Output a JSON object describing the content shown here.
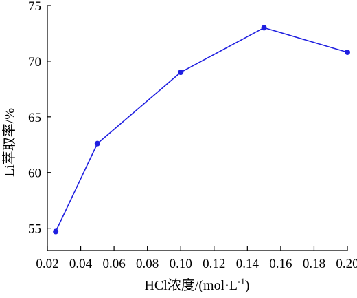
{
  "chart_data": {
    "type": "line",
    "xlabel": "HCl浓度/(mol·L",
    "xlabel_sup": "-1",
    "xlabel_tail": ")",
    "ylabel": "Li萃取率/%",
    "xlim": [
      0.02,
      0.2
    ],
    "ylim": [
      53,
      75
    ],
    "x_ticks": [
      "0.02",
      "0.04",
      "0.06",
      "0.08",
      "0.10",
      "0.12",
      "0.14",
      "0.16",
      "0.18",
      "0.20"
    ],
    "y_ticks": [
      "55",
      "60",
      "65",
      "70",
      "75"
    ],
    "grid": false,
    "series": [
      {
        "color": "#1f1fe0",
        "x": [
          0.025,
          0.05,
          0.1,
          0.15,
          0.2
        ],
        "y": [
          54.7,
          62.6,
          69.0,
          73.0,
          70.8
        ]
      }
    ]
  }
}
